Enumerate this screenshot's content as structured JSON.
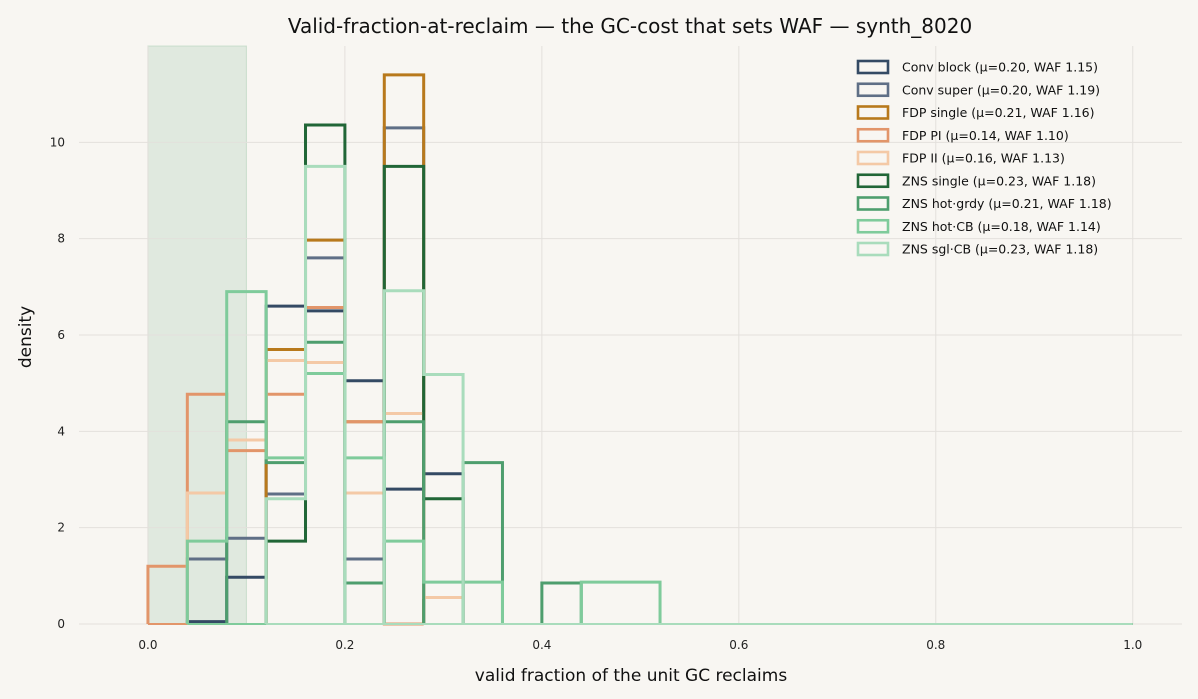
{
  "chart_data": {
    "type": "histogram",
    "title": "Valid-fraction-at-reclaim — the GC-cost that sets WAF — synth_8020",
    "xlabel": "valid fraction of the unit GC reclaims",
    "ylabel": "density",
    "xlim": [
      -0.07,
      1.05
    ],
    "ylim": [
      0,
      12
    ],
    "xticks": [
      0.0,
      0.2,
      0.4,
      0.6,
      0.8,
      1.0
    ],
    "xtick_labels": [
      "0.0",
      "0.2",
      "0.4",
      "0.6",
      "0.8",
      "1.0"
    ],
    "yticks": [
      0,
      2,
      4,
      6,
      8,
      10
    ],
    "ytick_labels": [
      "0",
      "2",
      "4",
      "6",
      "8",
      "10"
    ],
    "grid": true,
    "legend_position": "top-right",
    "highlight_band": {
      "x0": 0.0,
      "x1": 0.1,
      "color": "#a8cbb2"
    },
    "bin_width": 0.04,
    "series": [
      {
        "name": "Conv block  (μ=0.20, WAF 1.15)",
        "color": "#344a64",
        "bins": [
          [
            0.04,
            0.05
          ],
          [
            0.08,
            0.97
          ],
          [
            0.12,
            6.6
          ],
          [
            0.16,
            6.5
          ],
          [
            0.2,
            5.05
          ],
          [
            0.24,
            2.8
          ],
          [
            0.28,
            3.12
          ]
        ]
      },
      {
        "name": "Conv super  (μ=0.20, WAF 1.19)",
        "color": "#5f6f86",
        "bins": [
          [
            0.04,
            1.35
          ],
          [
            0.08,
            1.78
          ],
          [
            0.12,
            2.7
          ],
          [
            0.16,
            7.6
          ],
          [
            0.2,
            1.35
          ],
          [
            0.24,
            10.3
          ]
        ]
      },
      {
        "name": "FDP single  (μ=0.21, WAF 1.16)",
        "color": "#b8791c",
        "bins": [
          [
            0.12,
            5.7
          ],
          [
            0.16,
            7.97
          ],
          [
            0.2,
            4.2
          ],
          [
            0.24,
            11.4
          ]
        ]
      },
      {
        "name": "FDP PI  (μ=0.14, WAF 1.10)",
        "color": "#e2956a",
        "bins": [
          [
            0.0,
            1.2
          ],
          [
            0.04,
            4.77
          ],
          [
            0.08,
            3.6
          ],
          [
            0.12,
            4.77
          ],
          [
            0.16,
            6.57
          ],
          [
            0.2,
            4.2
          ],
          [
            0.24,
            0.0
          ]
        ]
      },
      {
        "name": "FDP II  (μ=0.16, WAF 1.13)",
        "color": "#f4c9a6",
        "bins": [
          [
            0.04,
            2.72
          ],
          [
            0.08,
            3.82
          ],
          [
            0.12,
            5.47
          ],
          [
            0.16,
            5.43
          ],
          [
            0.2,
            2.72
          ],
          [
            0.24,
            4.37
          ],
          [
            0.28,
            0.55
          ]
        ]
      },
      {
        "name": "ZNS single  (μ=0.23, WAF 1.18)",
        "color": "#216637",
        "bins": [
          [
            0.12,
            1.72
          ],
          [
            0.16,
            10.36
          ],
          [
            0.24,
            9.5
          ],
          [
            0.28,
            2.6
          ]
        ]
      },
      {
        "name": "ZNS hot·grdy  (μ=0.21, WAF 1.18)",
        "color": "#4e9e6e",
        "bins": [
          [
            0.08,
            4.2
          ],
          [
            0.12,
            3.35
          ],
          [
            0.16,
            5.85
          ],
          [
            0.2,
            0.85
          ],
          [
            0.24,
            4.2
          ],
          [
            0.32,
            3.35
          ],
          [
            0.4,
            0.85
          ]
        ]
      },
      {
        "name": "ZNS hot·CB  (μ=0.18, WAF 1.14)",
        "color": "#7fcb9b",
        "bins": [
          [
            0.04,
            1.72
          ],
          [
            0.08,
            6.9
          ],
          [
            0.12,
            3.45
          ],
          [
            0.16,
            5.2
          ],
          [
            0.2,
            3.45
          ],
          [
            0.24,
            1.72
          ],
          [
            0.28,
            0.87
          ],
          [
            0.32,
            0.87
          ],
          [
            0.44,
            0.87
          ],
          [
            0.48,
            0.87
          ]
        ]
      },
      {
        "name": "ZNS sgl·CB  (μ=0.23, WAF 1.18)",
        "color": "#a9dcbc",
        "bins": [
          [
            0.12,
            2.6
          ],
          [
            0.16,
            9.5
          ],
          [
            0.24,
            6.92
          ],
          [
            0.28,
            5.18
          ]
        ]
      }
    ]
  }
}
